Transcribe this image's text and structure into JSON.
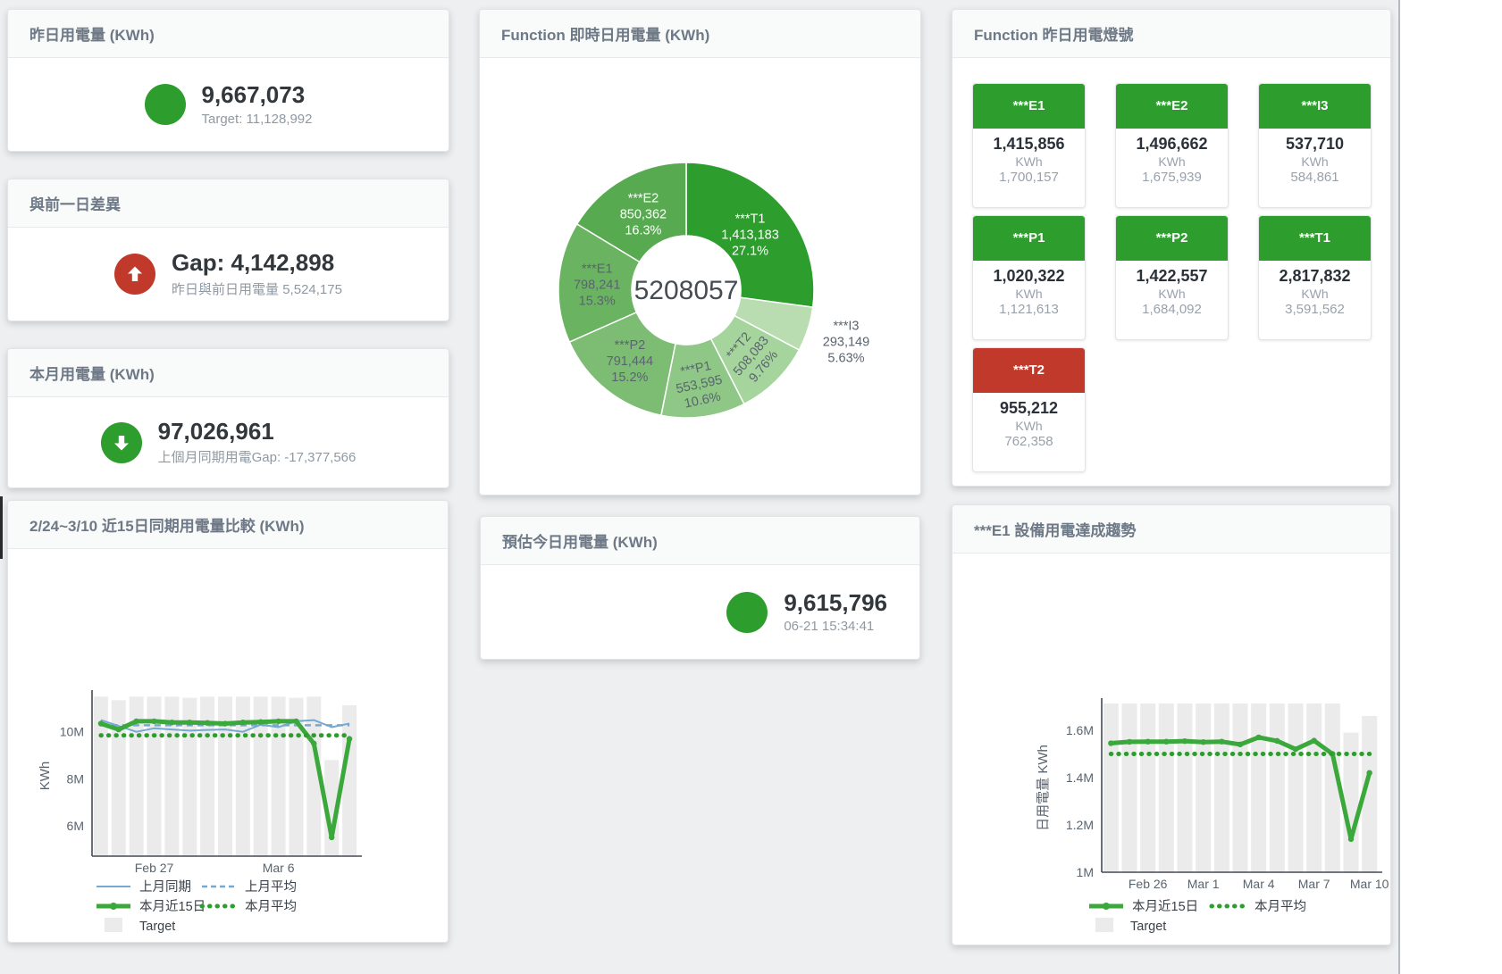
{
  "colors": {
    "green": "#2d9d2d",
    "red": "#c0392b",
    "blue": "#74a9d4",
    "bar_gray": "#ebebeb",
    "axis_text": "#5a646e",
    "legend_text": "#3a4149"
  },
  "kpi": {
    "yesterday": {
      "title": "昨日用電量 (KWh)",
      "value": "9,667,073",
      "subtitle": "Target: 11,128,992",
      "icon": "circle",
      "color": "#2d9d2d"
    },
    "diff": {
      "title": "與前一日差異",
      "value": "Gap: 4,142,898",
      "subtitle": "昨日與前日用電量 5,524,175",
      "icon": "arrow-up",
      "color": "#c0392b"
    },
    "month": {
      "title": "本月用電量 (KWh)",
      "value": "97,026,961",
      "subtitle": "上個月同期用電Gap: -17,377,566",
      "icon": "arrow-down",
      "color": "#2d9d2d"
    },
    "today_estimate": {
      "title": "預估今日用電量 (KWh)",
      "value": "9,615,796",
      "subtitle": "06-21 15:34:41",
      "icon": "circle",
      "color": "#2d9d2d"
    }
  },
  "donut_card": {
    "title": "Function 即時日用電量 (KWh)"
  },
  "lights_card": {
    "title": "Function 昨日用電燈號",
    "tiles": [
      {
        "name": "***E1",
        "value": "1,415,856",
        "unit": "KWh",
        "target": "1,700,157",
        "status": "green"
      },
      {
        "name": "***E2",
        "value": "1,496,662",
        "unit": "KWh",
        "target": "1,675,939",
        "status": "green"
      },
      {
        "name": "***I3",
        "value": "537,710",
        "unit": "KWh",
        "target": "584,861",
        "status": "green"
      },
      {
        "name": "***P1",
        "value": "1,020,322",
        "unit": "KWh",
        "target": "1,121,613",
        "status": "green"
      },
      {
        "name": "***P2",
        "value": "1,422,557",
        "unit": "KWh",
        "target": "1,684,092",
        "status": "green"
      },
      {
        "name": "***T1",
        "value": "2,817,832",
        "unit": "KWh",
        "target": "3,591,562",
        "status": "green"
      },
      {
        "name": "***T2",
        "value": "955,212",
        "unit": "KWh",
        "target": "762,358",
        "status": "red"
      }
    ]
  },
  "comparison_card": {
    "title": "2/24~3/10 近15日同期用電量比較 (KWh)"
  },
  "trend_card": {
    "title": "***E1 設備用電達成趨勢"
  },
  "chart_data": [
    {
      "type": "pie",
      "title": "Function 即時日用電量 (KWh)",
      "center_total": "5208057",
      "slices": [
        {
          "label": "***T1",
          "value": 1413183,
          "percent": "27.1%",
          "color": "#2d9d2d",
          "text_color": "#ffffff",
          "label_r": 95,
          "rot": 0
        },
        {
          "label": "***I3",
          "value": 293149,
          "percent": "5.63%",
          "color": "#b9ddb1",
          "text_color": "#5a646e",
          "label_r": 188,
          "rot": 0
        },
        {
          "label": "***T2",
          "value": 508083,
          "percent": "9.76%",
          "color": "#a6d49d",
          "text_color": "#5a646e",
          "label_r": 103,
          "rot": -50
        },
        {
          "label": "***P1",
          "value": 553595,
          "percent": "10.6%",
          "color": "#8fc786",
          "text_color": "#5a646e",
          "label_r": 106,
          "rot": -12
        },
        {
          "label": "***P2",
          "value": 791444,
          "percent": "15.2%",
          "color": "#7cbd73",
          "text_color": "#5a646e",
          "label_r": 101,
          "rot": 0
        },
        {
          "label": "***E1",
          "value": 798241,
          "percent": "15.3%",
          "color": "#6ab361",
          "text_color": "#5a646e",
          "label_r": 100,
          "rot": 0
        },
        {
          "label": "***E2",
          "value": 850362,
          "percent": "16.3%",
          "color": "#58aa50",
          "text_color": "#ffffff",
          "label_r": 98,
          "rot": 0
        }
      ]
    },
    {
      "type": "line",
      "title": "2/24~3/10 近15日同期用電量比較 (KWh)",
      "ylabel": "KWh",
      "x_count": 15,
      "ylim": [
        4.7,
        11.55
      ],
      "yticks": [
        {
          "v": 6,
          "label": "6M"
        },
        {
          "v": 8,
          "label": "8M"
        },
        {
          "v": 10,
          "label": "10M"
        }
      ],
      "xticks": [
        {
          "i": 3,
          "label": "Feb 27"
        },
        {
          "i": 10,
          "label": "Mar 6"
        }
      ],
      "bars": {
        "name": "Target",
        "color": "#ebebeb",
        "values": [
          11.5,
          11.35,
          11.5,
          11.5,
          11.5,
          11.45,
          11.5,
          11.5,
          11.5,
          11.5,
          11.5,
          11.45,
          11.5,
          8.8,
          11.13
        ]
      },
      "series": [
        {
          "name": "上月同期",
          "style": "line",
          "color": "#74a9d4",
          "values": [
            10.5,
            10.25,
            10.0,
            10.15,
            10.1,
            10.05,
            10.08,
            10.1,
            10.0,
            10.3,
            10.2,
            10.45,
            10.5,
            10.2,
            10.35
          ]
        },
        {
          "name": "上月平均",
          "style": "dash",
          "color": "#74a9d4",
          "values": 10.28
        },
        {
          "name": "本月近15日",
          "style": "thick",
          "color": "#3aa83a",
          "values": [
            10.35,
            10.1,
            10.45,
            10.45,
            10.4,
            10.4,
            10.38,
            10.35,
            10.4,
            10.42,
            10.45,
            10.45,
            9.5,
            5.5,
            9.7
          ]
        },
        {
          "name": "本月平均",
          "style": "dots",
          "color": "#2d9d2d",
          "values": 9.85
        }
      ]
    },
    {
      "type": "line",
      "title": "***E1 設備用電達成趨勢",
      "ylabel": "日用電量 KWh",
      "x_count": 15,
      "ylim": [
        1.0,
        1.713
      ],
      "yticks": [
        {
          "v": 1.0,
          "label": "1M"
        },
        {
          "v": 1.2,
          "label": "1.2M"
        },
        {
          "v": 1.4,
          "label": "1.4M"
        },
        {
          "v": 1.6,
          "label": "1.6M"
        }
      ],
      "xticks": [
        {
          "i": 2,
          "label": "Feb 26"
        },
        {
          "i": 5,
          "label": "Mar 1"
        },
        {
          "i": 8,
          "label": "Mar 4"
        },
        {
          "i": 11,
          "label": "Mar 7"
        },
        {
          "i": 14,
          "label": "Mar 10"
        }
      ],
      "bars": {
        "name": "Target",
        "color": "#ebebeb",
        "values": [
          1.75,
          1.75,
          1.75,
          1.75,
          1.75,
          1.75,
          1.75,
          1.75,
          1.75,
          1.75,
          1.75,
          1.75,
          1.75,
          1.59,
          1.66
        ]
      },
      "series": [
        {
          "name": "本月近15日",
          "style": "thick",
          "color": "#3aa83a",
          "values": [
            1.545,
            1.551,
            1.552,
            1.552,
            1.554,
            1.55,
            1.552,
            1.54,
            1.57,
            1.555,
            1.52,
            1.556,
            1.5,
            1.14,
            1.42
          ]
        },
        {
          "name": "本月平均",
          "style": "dots",
          "color": "#2d9d2d",
          "values": 1.5
        }
      ]
    }
  ]
}
